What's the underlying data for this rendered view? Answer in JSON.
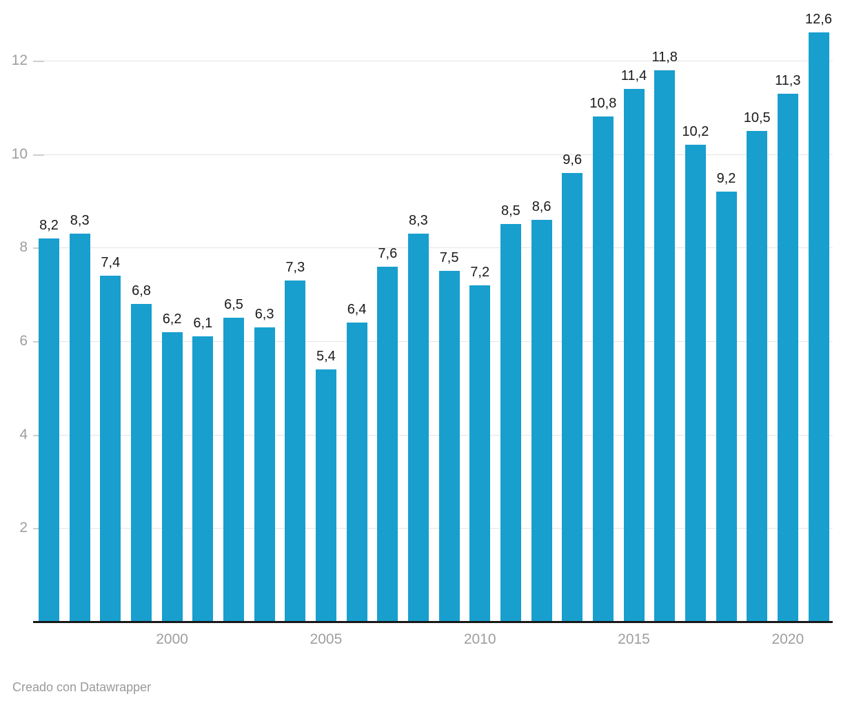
{
  "chart_data": {
    "type": "bar",
    "categories": [
      1996,
      1997,
      1998,
      1999,
      2000,
      2001,
      2002,
      2003,
      2004,
      2005,
      2006,
      2007,
      2008,
      2009,
      2010,
      2011,
      2012,
      2013,
      2014,
      2015,
      2016,
      2017,
      2018,
      2019,
      2020,
      2021
    ],
    "values": [
      8.2,
      8.3,
      7.4,
      6.8,
      6.2,
      6.1,
      6.5,
      6.3,
      7.3,
      5.4,
      6.4,
      7.6,
      8.3,
      7.5,
      7.2,
      8.5,
      8.6,
      9.6,
      10.8,
      11.4,
      11.8,
      10.2,
      9.2,
      10.5,
      11.3,
      12.6
    ],
    "value_labels": [
      "8,2",
      "8,3",
      "7,4",
      "6,8",
      "6,2",
      "6,1",
      "6,5",
      "6,3",
      "7,3",
      "5,4",
      "6,4",
      "7,6",
      "8,3",
      "7,5",
      "7,2",
      "8,5",
      "8,6",
      "9,6",
      "10,8",
      "11,4",
      "11,8",
      "10,2",
      "9,2",
      "10,5",
      "11,3",
      "12,6"
    ],
    "title": "",
    "xlabel": "",
    "ylabel": "",
    "ylim": [
      0,
      13
    ],
    "yticks": [
      2,
      4,
      6,
      8,
      10,
      12
    ],
    "ytick_labels": [
      "2",
      "4",
      "6",
      "8",
      "10",
      "12"
    ],
    "xticks": [
      2000,
      2005,
      2010,
      2015,
      2020
    ],
    "xtick_labels": [
      "2000",
      "2005",
      "2010",
      "2015",
      "2020"
    ],
    "grid": "horizontal",
    "legend": "none"
  },
  "colors": {
    "bar": "#189fce",
    "value_label": "#1a1a1a",
    "axis_label": "#9e9e9e",
    "gridline": "#e4e4e4",
    "tick": "#cdcdcd",
    "baseline": "#18181a",
    "credit": "#9a9a9a",
    "background": "#ffffff"
  },
  "footer": {
    "credit": "Creado con Datawrapper"
  }
}
